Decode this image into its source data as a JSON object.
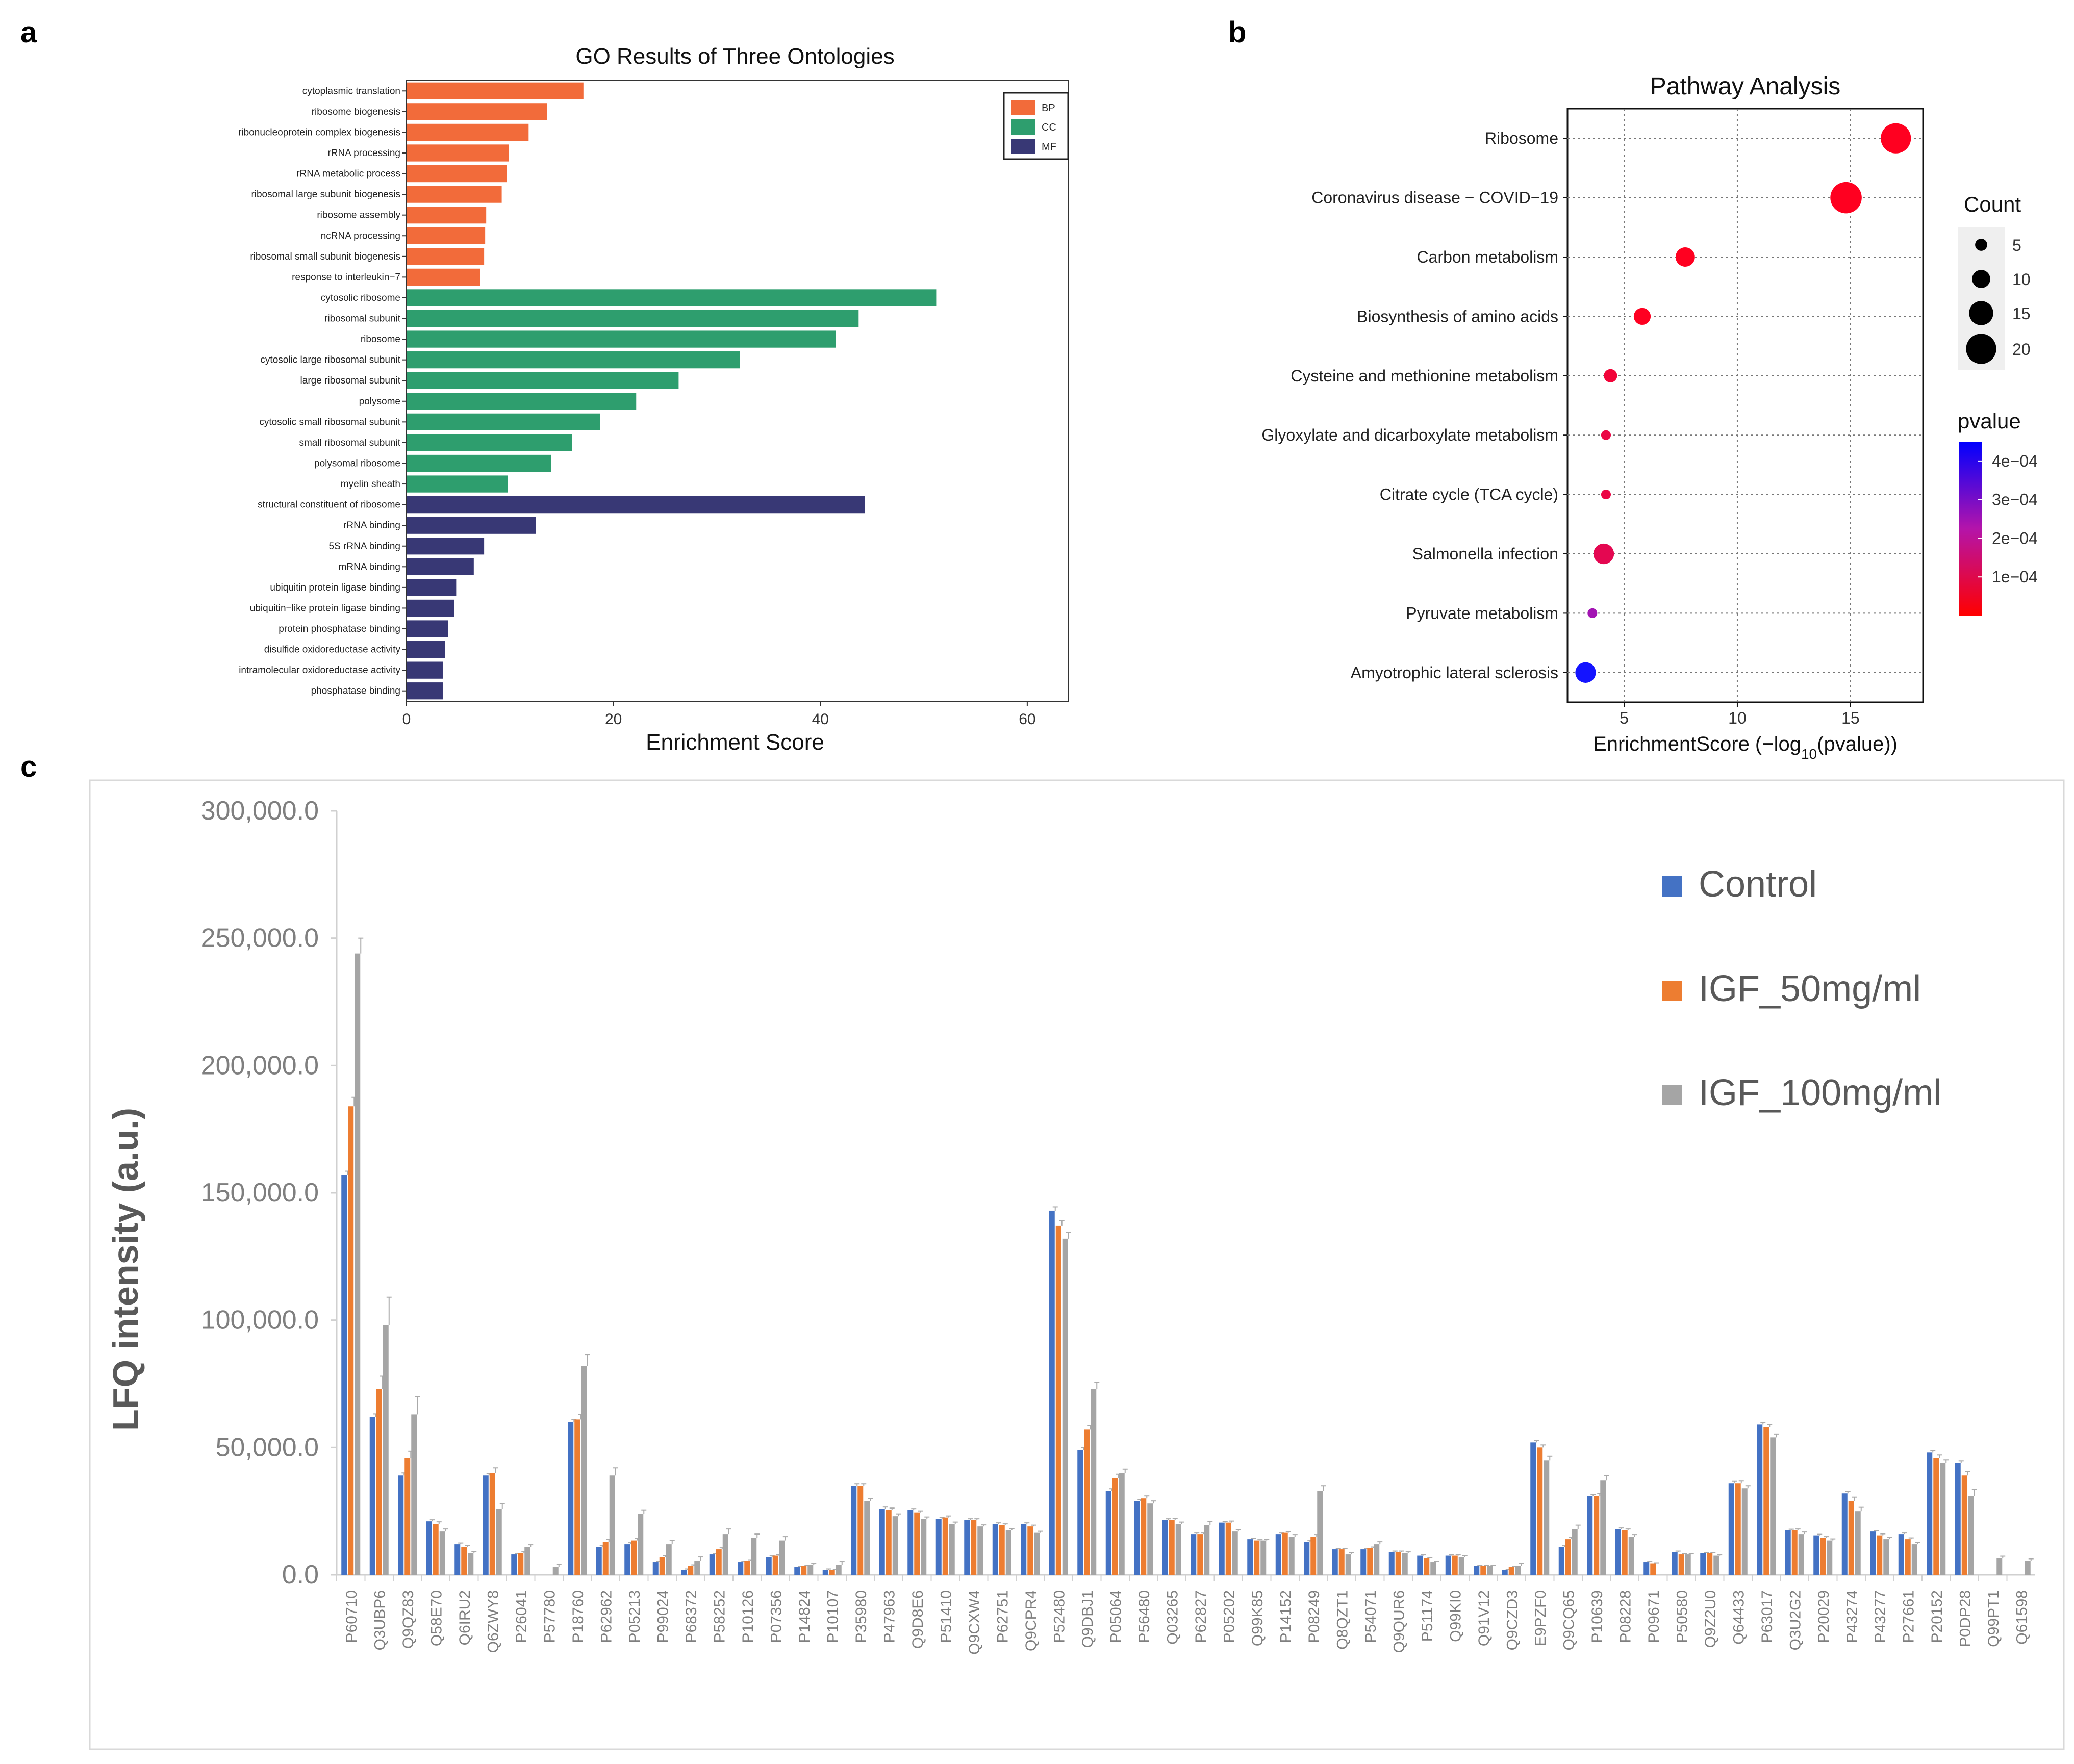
{
  "panel_labels": {
    "a": "a",
    "b": "b",
    "c": "c"
  },
  "chart_data": [
    {
      "type": "bar",
      "orientation": "horizontal",
      "title": "GO Results of Three Ontologies",
      "xlabel": "Enrichment Score",
      "xlim": [
        0,
        64
      ],
      "xticks": [
        0,
        20,
        40,
        60
      ],
      "legend_position": "top-right",
      "legend": [
        {
          "name": "BP",
          "color": "#F26B3A"
        },
        {
          "name": "CC",
          "color": "#2E9E6E"
        },
        {
          "name": "MF",
          "color": "#383875"
        }
      ],
      "categories": [
        "cytoplasmic translation",
        "ribosome biogenesis",
        "ribonucleoprotein complex biogenesis",
        "rRNA processing",
        "rRNA metabolic process",
        "ribosomal large subunit biogenesis",
        "ribosome assembly",
        "ncRNA processing",
        "ribosomal small subunit biogenesis",
        "response to interleukin−7",
        "cytosolic ribosome",
        "ribosomal subunit",
        "ribosome",
        "cytosolic large ribosomal subunit",
        "large ribosomal subunit",
        "polysome",
        "cytosolic small ribosomal subunit",
        "small ribosomal subunit",
        "polysomal ribosome",
        "myelin sheath",
        "structural constituent of ribosome",
        "rRNA binding",
        "5S rRNA binding",
        "mRNA binding",
        "ubiquitin protein ligase binding",
        "ubiquitin−like protein ligase binding",
        "protein phosphatase binding",
        "disulfide oxidoreductase activity",
        "intramolecular oxidoreductase activity",
        "phosphatase binding"
      ],
      "groups": [
        "BP",
        "BP",
        "BP",
        "BP",
        "BP",
        "BP",
        "BP",
        "BP",
        "BP",
        "BP",
        "CC",
        "CC",
        "CC",
        "CC",
        "CC",
        "CC",
        "CC",
        "CC",
        "CC",
        "CC",
        "MF",
        "MF",
        "MF",
        "MF",
        "MF",
        "MF",
        "MF",
        "MF",
        "MF",
        "MF"
      ],
      "values": [
        17.1,
        13.6,
        11.8,
        9.9,
        9.7,
        9.2,
        7.7,
        7.6,
        7.5,
        7.1,
        51.2,
        43.7,
        41.5,
        32.2,
        26.3,
        22.2,
        18.7,
        16.0,
        14.0,
        9.8,
        44.3,
        12.5,
        7.5,
        6.5,
        4.8,
        4.6,
        4.0,
        3.7,
        3.5,
        3.5
      ]
    },
    {
      "type": "scatter",
      "title": "Pathway Analysis",
      "xlabel_main": "EnrichmentScore (−log",
      "xlabel_sub": "10",
      "xlabel_end": "(pvalue))",
      "xlim": [
        2.5,
        18.2
      ],
      "xticks": [
        5,
        10,
        15
      ],
      "categories": [
        "Ribosome",
        "Coronavirus disease − COVID−19",
        "Carbon metabolism",
        "Biosynthesis of amino acids",
        "Cysteine and methionine metabolism",
        "Glyoxylate and dicarboxylate metabolism",
        "Citrate cycle (TCA cycle)",
        "Salmonella infection",
        "Pyruvate metabolism",
        "Amyotrophic lateral sclerosis"
      ],
      "x": [
        17.0,
        14.8,
        7.7,
        5.8,
        4.4,
        4.2,
        4.2,
        4.1,
        3.6,
        3.3
      ],
      "count": [
        20,
        21,
        11,
        9,
        6,
        3,
        3,
        12,
        3,
        12
      ],
      "pvalue": [
        1e-17,
        1.6e-15,
        2e-08,
        1.6e-06,
        4e-05,
        6e-05,
        6e-05,
        8e-05,
        0.00025,
        0.0005
      ],
      "size_legend_title": "Count",
      "size_legend_values": [
        5,
        10,
        15,
        20
      ],
      "color_legend_title": "pvalue",
      "color_legend_ticks": [
        "4e−04",
        "3e−04",
        "2e−04",
        "1e−04"
      ],
      "color_legend_tick_values": [
        0.0004,
        0.0003,
        0.0002,
        0.0001
      ],
      "color_range": [
        0,
        0.00045
      ],
      "color_low": "#FF0000",
      "color_high": "#0000FF"
    },
    {
      "type": "bar",
      "title": "",
      "ylabel": "LFQ intensity (a.u.)",
      "ylim": [
        0,
        300000
      ],
      "yticks": [
        0,
        50000,
        100000,
        150000,
        200000,
        250000,
        300000
      ],
      "ytick_labels": [
        "0.0",
        "50,000.0",
        "100,000.0",
        "150,000.0",
        "200,000.0",
        "250,000.0",
        "300,000.0"
      ],
      "legend_position": "top-right",
      "categories": [
        "P60710",
        "Q3UBP6",
        "Q9QZ83",
        "Q58E70",
        "Q6IRU2",
        "Q6ZWY8",
        "P26041",
        "P57780",
        "P18760",
        "P62962",
        "P05213",
        "P99024",
        "P68372",
        "P58252",
        "P10126",
        "P07356",
        "P14824",
        "P10107",
        "P35980",
        "P47963",
        "Q9D8E6",
        "P51410",
        "Q9CXW4",
        "P62751",
        "Q9CPR4",
        "P52480",
        "Q9DBJ1",
        "P05064",
        "P56480",
        "Q03265",
        "P62827",
        "P05202",
        "Q99K85",
        "P14152",
        "P08249",
        "Q8QZT1",
        "P54071",
        "Q9QUR6",
        "P51174",
        "Q99KI0",
        "Q91V12",
        "Q9CZD3",
        "E9PZF0",
        "Q9CQ65",
        "P10639",
        "P08228",
        "P09671",
        "P50580",
        "Q9Z2U0",
        "Q64433",
        "P63017",
        "Q3U2G2",
        "P20029",
        "P43274",
        "P43277",
        "P27661",
        "P20152",
        "P0DP28",
        "Q99PT1",
        "Q61598"
      ],
      "series": [
        {
          "name": "Control",
          "color": "#4472C4",
          "values": [
            157000,
            62000,
            39000,
            21000,
            12000,
            39000,
            8000,
            0,
            60000,
            11000,
            12000,
            5000,
            2000,
            8000,
            5000,
            7000,
            3000,
            2000,
            35000,
            26000,
            25500,
            22000,
            21500,
            20000,
            20000,
            143000,
            49000,
            33000,
            29000,
            21500,
            16000,
            20500,
            14000,
            16000,
            13000,
            10000,
            10000,
            9000,
            7500,
            7500,
            3500,
            2000,
            52000,
            11000,
            31000,
            18000,
            5000,
            9000,
            8500,
            36000,
            59000,
            17500,
            15500,
            32000,
            17000,
            16000,
            48000,
            44000,
            0,
            0
          ]
        },
        {
          "name": "IGF_50mg/ml",
          "color": "#ED7D31",
          "values": [
            184000,
            73000,
            46000,
            20000,
            11000,
            40000,
            8500,
            0,
            61000,
            13000,
            13500,
            7000,
            3500,
            10000,
            5500,
            7500,
            3500,
            2000,
            35000,
            25500,
            24500,
            22500,
            21500,
            19500,
            19000,
            137000,
            57000,
            38000,
            30000,
            21500,
            16000,
            20500,
            13500,
            16500,
            15000,
            10000,
            10500,
            9000,
            6500,
            7500,
            3500,
            3000,
            50000,
            14000,
            31000,
            17500,
            4500,
            8000,
            8500,
            36000,
            58000,
            17500,
            14500,
            29000,
            15500,
            14000,
            46000,
            39000,
            0,
            0
          ]
        },
        {
          "name": "IGF_100mg/ml",
          "color": "#A5A5A5",
          "values": [
            244000,
            98000,
            63000,
            17000,
            8500,
            26000,
            11000,
            3000,
            82000,
            39000,
            24000,
            12000,
            5500,
            16000,
            14500,
            13500,
            4000,
            4000,
            29000,
            23000,
            22000,
            20000,
            19000,
            17500,
            16500,
            132000,
            73000,
            40000,
            28000,
            20000,
            19500,
            17000,
            13500,
            15000,
            33000,
            8000,
            12000,
            8500,
            5000,
            7000,
            3500,
            3500,
            45000,
            18000,
            37000,
            15000,
            0,
            8000,
            7500,
            34000,
            54000,
            16000,
            13500,
            25000,
            14000,
            12000,
            44000,
            31000,
            6500,
            5500
          ]
        }
      ],
      "errors": [
        [
          1500,
          1200,
          1000,
          600,
          500,
          800,
          400,
          0,
          1000,
          500,
          600,
          400,
          300,
          400,
          300,
          400,
          200,
          300,
          800,
          600,
          500,
          500,
          500,
          400,
          400,
          1500,
          1000,
          800,
          600,
          500,
          400,
          500,
          300,
          400,
          400,
          300,
          300,
          300,
          300,
          300,
          200,
          200,
          800,
          400,
          600,
          400,
          200,
          300,
          300,
          700,
          800,
          400,
          400,
          700,
          400,
          400,
          800,
          800,
          0,
          0
        ],
        [
          3500,
          5000,
          2500,
          800,
          500,
          2000,
          500,
          0,
          2000,
          1000,
          800,
          600,
          400,
          600,
          400,
          500,
          200,
          200,
          800,
          700,
          600,
          600,
          500,
          500,
          500,
          2000,
          1500,
          1500,
          1000,
          600,
          400,
          600,
          300,
          500,
          800,
          300,
          400,
          300,
          300,
          300,
          200,
          200,
          1000,
          800,
          1000,
          500,
          200,
          300,
          300,
          800,
          1000,
          500,
          500,
          1500,
          600,
          500,
          1000,
          1500,
          0,
          0
        ],
        [
          6000,
          11000,
          7000,
          1000,
          600,
          2000,
          800,
          1200,
          4500,
          3000,
          1500,
          1500,
          1500,
          2000,
          1500,
          1500,
          400,
          1200,
          1000,
          900,
          700,
          700,
          600,
          600,
          600,
          2500,
          2500,
          1500,
          1000,
          700,
          1500,
          800,
          400,
          800,
          2000,
          800,
          1000,
          500,
          300,
          500,
          200,
          1000,
          1500,
          1500,
          2000,
          800,
          0,
          300,
          300,
          1000,
          1300,
          800,
          600,
          1500,
          700,
          700,
          1200,
          2500,
          800,
          800
        ]
      ]
    }
  ]
}
